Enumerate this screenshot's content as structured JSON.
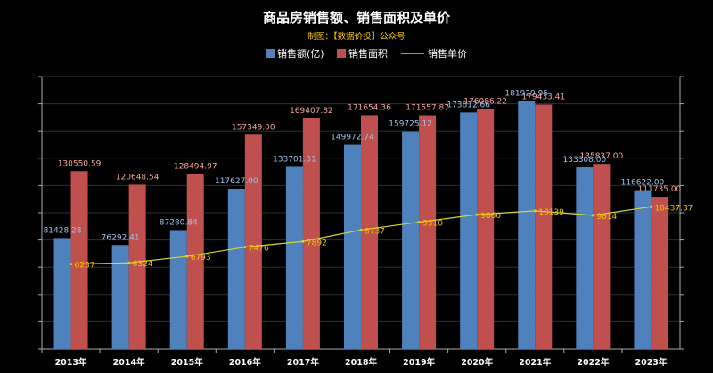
{
  "chart_data": {
    "type": "bar",
    "title": "商品房销售额、销售面积及单价",
    "subtitle": "制图：【数据价投】公众号",
    "categories": [
      "2013年",
      "2014年",
      "2015年",
      "2016年",
      "2017年",
      "2018年",
      "2019年",
      "2020年",
      "2021年",
      "2022年",
      "2023年"
    ],
    "series": [
      {
        "name": "销售额(亿)",
        "kind": "bar",
        "color": "#4f81bd",
        "values": [
          81428.28,
          76292.41,
          87280.84,
          117627.0,
          133701.31,
          149972.74,
          159725.12,
          173612.66,
          181929.95,
          133308.0,
          116622.0
        ],
        "labels": [
          "81428.28",
          "76292.41",
          "87280.84",
          "117627.00",
          "133701.31",
          "149972.74",
          "159725.12",
          "173612.66",
          "181929.95",
          "133308.00",
          "116622.00"
        ]
      },
      {
        "name": "销售面积",
        "kind": "bar",
        "color": "#c0504d",
        "values": [
          130550.59,
          120648.54,
          128494.97,
          157349.0,
          169407.82,
          171654.36,
          171557.87,
          176086.22,
          179433.41,
          135837.0,
          111735.0
        ],
        "labels": [
          "130550.59",
          "120648.54",
          "128494.97",
          "157349.00",
          "169407.82",
          "171654.36",
          "171557.87",
          "176086.22",
          "179433.41",
          "135837.00",
          "111735.00"
        ]
      },
      {
        "name": "销售单价",
        "kind": "line",
        "axis": "right",
        "color": "#d4d43a",
        "values": [
          6237,
          6324,
          6793,
          7476,
          7892,
          8737,
          9310,
          9860,
          10139,
          9814,
          10437.37
        ],
        "labels": [
          "6237",
          "6324",
          "6793",
          "7476",
          "7892",
          "8737",
          "9310",
          "9860",
          "10139",
          "9814",
          "10437.37"
        ]
      }
    ],
    "ylim_left": [
      0,
      200000
    ],
    "ylim_right": [
      0,
      20000
    ],
    "grid": true,
    "legend_position": "top-center",
    "colors": {
      "background": "#000000",
      "text": "#ffffff",
      "subtitle": "#f5c400",
      "axis": "#aaaaaa",
      "label_blue": "#9fc3ec",
      "label_red": "#f4a79d",
      "label_line": "#f5c400"
    }
  }
}
